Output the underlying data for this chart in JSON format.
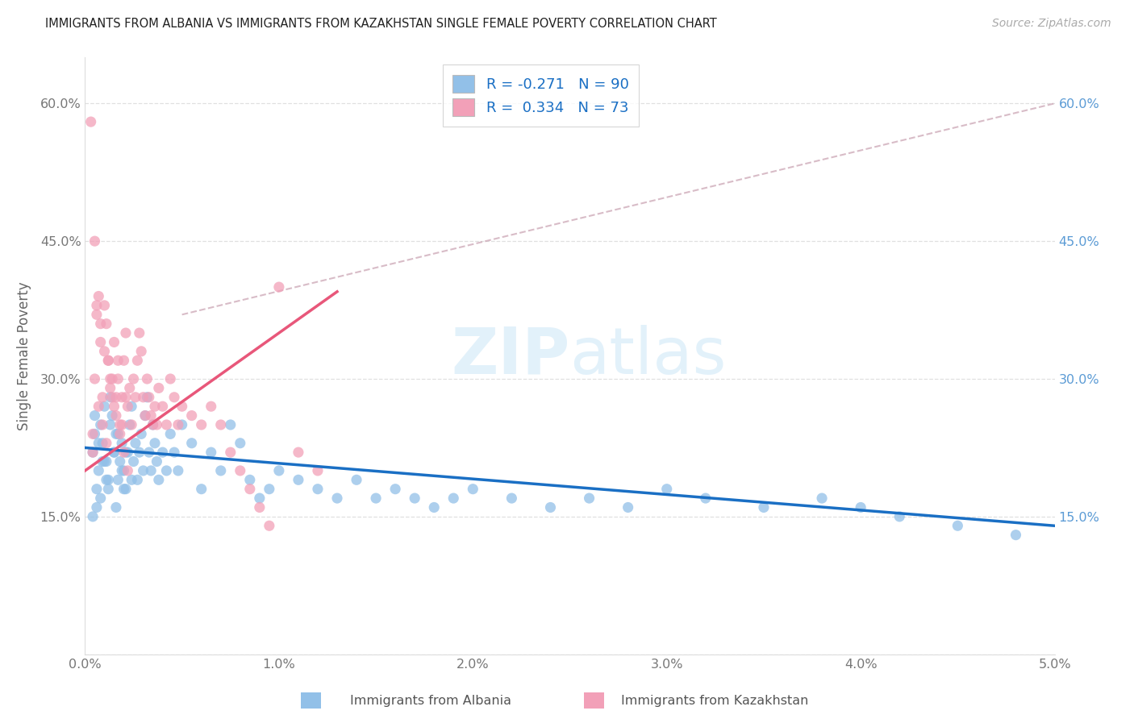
{
  "title": "IMMIGRANTS FROM ALBANIA VS IMMIGRANTS FROM KAZAKHSTAN SINGLE FEMALE POVERTY CORRELATION CHART",
  "source": "Source: ZipAtlas.com",
  "ylabel": "Single Female Poverty",
  "albania_color": "#92c0e8",
  "kazakhstan_color": "#f2a0b8",
  "albania_R": -0.271,
  "albania_N": 90,
  "kazakhstan_R": 0.334,
  "kazakhstan_N": 73,
  "albania_line_color": "#1a6fc4",
  "kazakhstan_line_color": "#e8577a",
  "dashed_line_color": "#c8a0b0",
  "legend_text_color": "#1a6fc4",
  "right_tick_color": "#5b9bd5",
  "watermark_color": "#d0e8f8",
  "background_color": "#ffffff",
  "xlim": [
    0.0,
    5.0
  ],
  "ylim": [
    0.0,
    65.0
  ],
  "x_ticks": [
    0.0,
    1.0,
    2.0,
    3.0,
    4.0,
    5.0
  ],
  "y_ticks": [
    0.0,
    15.0,
    30.0,
    45.0,
    60.0
  ],
  "albania_x": [
    0.04,
    0.05,
    0.06,
    0.07,
    0.08,
    0.09,
    0.1,
    0.11,
    0.12,
    0.13,
    0.14,
    0.15,
    0.16,
    0.17,
    0.18,
    0.19,
    0.2,
    0.21,
    0.22,
    0.23,
    0.24,
    0.25,
    0.26,
    0.27,
    0.28,
    0.29,
    0.3,
    0.31,
    0.32,
    0.33,
    0.34,
    0.35,
    0.36,
    0.37,
    0.38,
    0.4,
    0.42,
    0.44,
    0.46,
    0.48,
    0.5,
    0.55,
    0.6,
    0.65,
    0.7,
    0.75,
    0.8,
    0.85,
    0.9,
    0.95,
    1.0,
    1.1,
    1.2,
    1.3,
    1.4,
    1.5,
    1.6,
    1.7,
    1.8,
    1.9,
    2.0,
    2.2,
    2.4,
    2.6,
    2.8,
    3.0,
    3.2,
    3.5,
    3.8,
    4.0,
    4.2,
    4.5,
    4.8,
    0.05,
    0.07,
    0.09,
    0.11,
    0.13,
    0.15,
    0.17,
    0.19,
    0.21,
    0.08,
    0.06,
    0.04,
    0.12,
    0.16,
    0.2,
    0.24,
    0.1
  ],
  "albania_y": [
    22.0,
    24.0,
    18.0,
    20.0,
    25.0,
    23.0,
    27.0,
    21.0,
    19.0,
    28.0,
    26.0,
    22.0,
    24.0,
    19.0,
    21.0,
    23.0,
    20.0,
    18.0,
    22.0,
    25.0,
    27.0,
    21.0,
    23.0,
    19.0,
    22.0,
    24.0,
    20.0,
    26.0,
    28.0,
    22.0,
    20.0,
    25.0,
    23.0,
    21.0,
    19.0,
    22.0,
    20.0,
    24.0,
    22.0,
    20.0,
    25.0,
    23.0,
    18.0,
    22.0,
    20.0,
    25.0,
    23.0,
    19.0,
    17.0,
    18.0,
    20.0,
    19.0,
    18.0,
    17.0,
    19.0,
    17.0,
    18.0,
    17.0,
    16.0,
    17.0,
    18.0,
    17.0,
    16.0,
    17.0,
    16.0,
    18.0,
    17.0,
    16.0,
    17.0,
    16.0,
    15.0,
    14.0,
    13.0,
    26.0,
    23.0,
    21.0,
    19.0,
    25.0,
    22.0,
    24.0,
    20.0,
    22.0,
    17.0,
    16.0,
    15.0,
    18.0,
    16.0,
    18.0,
    19.0,
    21.0
  ],
  "kazakhstan_x": [
    0.04,
    0.05,
    0.06,
    0.07,
    0.08,
    0.09,
    0.1,
    0.11,
    0.12,
    0.13,
    0.14,
    0.15,
    0.16,
    0.17,
    0.18,
    0.19,
    0.2,
    0.21,
    0.22,
    0.23,
    0.24,
    0.25,
    0.26,
    0.27,
    0.28,
    0.29,
    0.3,
    0.31,
    0.32,
    0.33,
    0.34,
    0.35,
    0.36,
    0.37,
    0.38,
    0.4,
    0.42,
    0.44,
    0.46,
    0.48,
    0.5,
    0.55,
    0.6,
    0.65,
    0.7,
    0.75,
    0.8,
    0.85,
    0.9,
    0.95,
    1.0,
    1.1,
    1.2,
    0.05,
    0.07,
    0.09,
    0.11,
    0.13,
    0.15,
    0.17,
    0.19,
    0.21,
    0.04,
    0.06,
    0.08,
    0.1,
    0.12,
    0.14,
    0.16,
    0.18,
    0.2,
    0.22,
    0.03
  ],
  "kazakhstan_y": [
    22.0,
    45.0,
    37.0,
    39.0,
    34.0,
    28.0,
    38.0,
    36.0,
    32.0,
    30.0,
    28.0,
    34.0,
    26.0,
    30.0,
    24.0,
    28.0,
    32.0,
    35.0,
    27.0,
    29.0,
    25.0,
    30.0,
    28.0,
    32.0,
    35.0,
    33.0,
    28.0,
    26.0,
    30.0,
    28.0,
    26.0,
    25.0,
    27.0,
    25.0,
    29.0,
    27.0,
    25.0,
    30.0,
    28.0,
    25.0,
    27.0,
    26.0,
    25.0,
    27.0,
    25.0,
    22.0,
    20.0,
    18.0,
    16.0,
    14.0,
    40.0,
    22.0,
    20.0,
    30.0,
    27.0,
    25.0,
    23.0,
    29.0,
    27.0,
    32.0,
    25.0,
    28.0,
    24.0,
    38.0,
    36.0,
    33.0,
    32.0,
    30.0,
    28.0,
    25.0,
    22.0,
    20.0,
    58.0
  ],
  "albania_reg_x0": 0.0,
  "albania_reg_y0": 22.5,
  "albania_reg_x1": 5.0,
  "albania_reg_y1": 14.0,
  "kazakhstan_reg_x0": 0.0,
  "kazakhstan_reg_y0": 20.0,
  "kazakhstan_reg_x1": 1.0,
  "kazakhstan_reg_y1": 35.0,
  "dashed_x0": 0.5,
  "dashed_y0": 37.0,
  "dashed_x1": 5.0,
  "dashed_y1": 60.0
}
